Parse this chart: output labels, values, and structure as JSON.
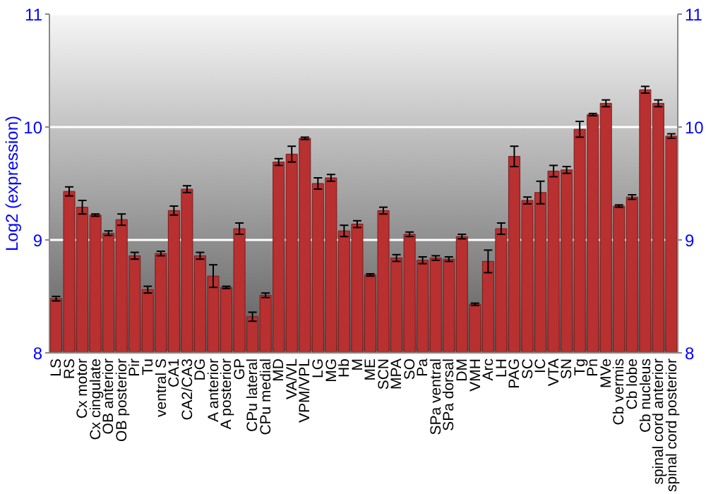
{
  "chart_data": {
    "type": "bar",
    "ylabel": "Log2 (expression)",
    "categories": [
      "LS",
      "RS",
      "Cx motor",
      "Cx cingulate",
      "OB anterior",
      "OB posterior",
      "Pir",
      "Tu",
      "ventral S",
      "CA1",
      "CA2/CA3",
      "DG",
      "A anterior",
      "A posterior",
      "GP",
      "CPu lateral",
      "CPu medial",
      "MD",
      "VA/VL",
      "VPM/VPL",
      "LG",
      "MG",
      "Hb",
      "M",
      "ME",
      "SCN",
      "MPA",
      "SO",
      "Pa",
      "SPa ventral",
      "SPa dorsal",
      "DM",
      "VMH",
      "Arc",
      "LH",
      "PAG",
      "SC",
      "IC",
      "VTA",
      "SN",
      "Tg",
      "Pn",
      "MVe",
      "Cb vermis",
      "Cb lobe",
      "Cb nucleus",
      "spinal cord anterior",
      "spinal cord posterior"
    ],
    "values": [
      8.48,
      9.43,
      9.29,
      9.22,
      9.06,
      9.18,
      8.86,
      8.56,
      8.88,
      9.26,
      9.45,
      8.86,
      8.68,
      8.58,
      9.1,
      8.32,
      8.51,
      9.69,
      9.76,
      9.9,
      9.5,
      9.55,
      9.08,
      9.14,
      8.69,
      9.26,
      8.84,
      9.05,
      8.82,
      8.84,
      8.83,
      9.03,
      8.43,
      8.81,
      9.1,
      9.74,
      9.35,
      9.42,
      9.61,
      9.62,
      9.98,
      10.11,
      10.21,
      9.3,
      9.38,
      10.33,
      10.21,
      9.92
    ],
    "errors": [
      0.02,
      0.04,
      0.06,
      0.01,
      0.02,
      0.05,
      0.03,
      0.03,
      0.02,
      0.04,
      0.03,
      0.03,
      0.1,
      0.01,
      0.05,
      0.04,
      0.02,
      0.03,
      0.07,
      0.01,
      0.05,
      0.03,
      0.05,
      0.03,
      0.01,
      0.03,
      0.03,
      0.02,
      0.03,
      0.02,
      0.02,
      0.02,
      0.01,
      0.1,
      0.05,
      0.09,
      0.03,
      0.1,
      0.05,
      0.03,
      0.07,
      0.01,
      0.03,
      0.01,
      0.02,
      0.03,
      0.03,
      0.02
    ],
    "color": "#b83030",
    "ylim": [
      8,
      11
    ],
    "yticks": [
      8,
      9,
      10,
      11
    ],
    "y2lim": [
      8,
      11
    ],
    "y2ticks": [
      8,
      9,
      10,
      11
    ],
    "grid": "y"
  }
}
